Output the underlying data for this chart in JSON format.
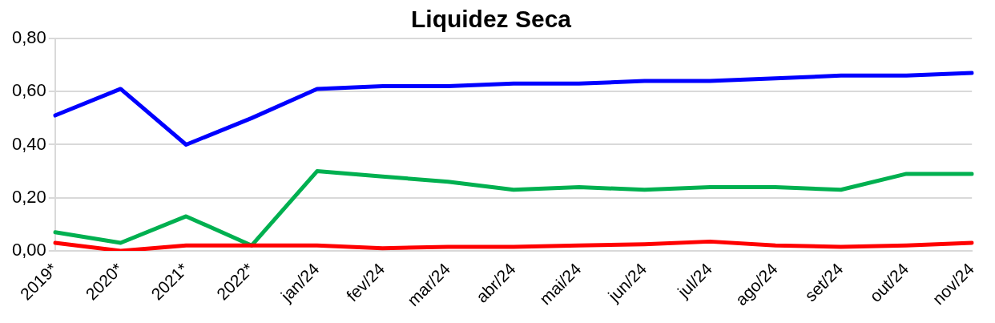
{
  "chart_data": {
    "type": "line",
    "title": "Liquidez Seca",
    "categories": [
      "2019*",
      "2020*",
      "2021*",
      "2022*",
      "jan/24",
      "fev/24",
      "mar/24",
      "abr/24",
      "mai/24",
      "jun/24",
      "jul/24",
      "ago/24",
      "set/24",
      "out/24",
      "nov/24"
    ],
    "series": [
      {
        "color": "#0000ff",
        "values": [
          0.51,
          0.61,
          0.4,
          0.5,
          0.61,
          0.62,
          0.62,
          0.63,
          0.63,
          0.64,
          0.64,
          0.65,
          0.66,
          0.66,
          0.67
        ]
      },
      {
        "color": "#ff0000",
        "values": [
          0.03,
          0.0,
          0.02,
          0.02,
          0.02,
          0.01,
          0.015,
          0.015,
          0.02,
          0.025,
          0.035,
          0.02,
          0.015,
          0.02,
          0.03
        ]
      },
      {
        "color": "#00b050",
        "values": [
          0.07,
          0.03,
          0.13,
          0.02,
          0.3,
          0.28,
          0.26,
          0.23,
          0.24,
          0.23,
          0.24,
          0.24,
          0.23,
          0.29,
          0.29
        ]
      }
    ],
    "ylim": [
      0,
      0.8
    ],
    "yticks": [
      {
        "value": 0,
        "label": "0,00"
      },
      {
        "value": 0.2,
        "label": "0,20"
      },
      {
        "value": 0.4,
        "label": "0,40"
      },
      {
        "value": 0.6,
        "label": "0,60"
      },
      {
        "value": 0.8,
        "label": "0,80"
      }
    ],
    "grid": "y",
    "legend": false,
    "marker": "none",
    "line_style": "solid"
  }
}
